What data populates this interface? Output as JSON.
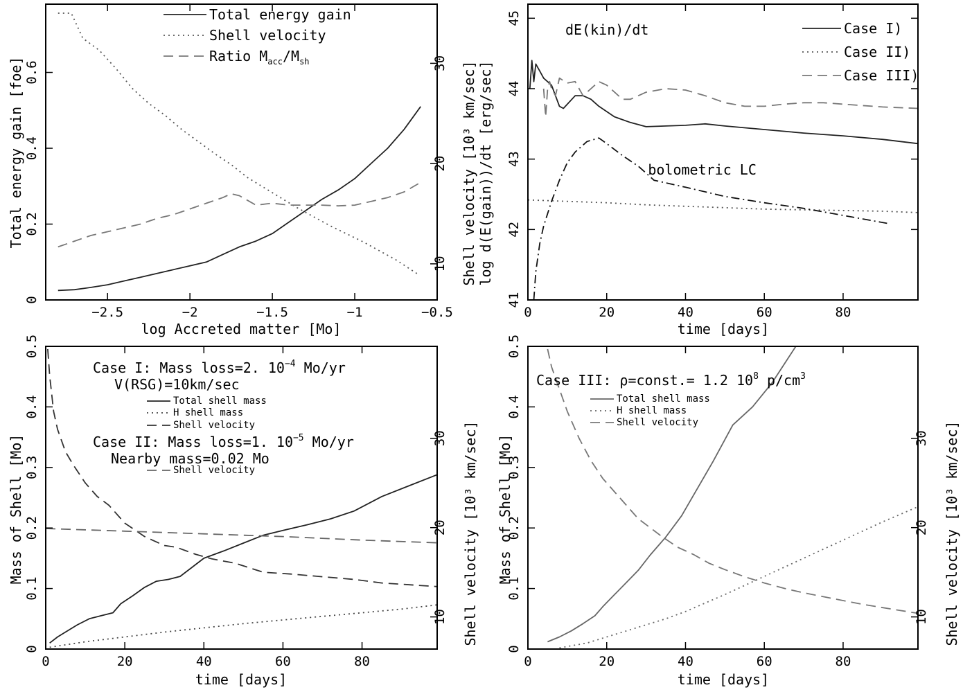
{
  "chart_data": [
    {
      "type": "line",
      "panel": "top-left",
      "title": "",
      "xlabel": "log  Accreted matter [Mo]",
      "ylabel": "Total energy gain [foe]",
      "ylabel_right": "Shell velocity [10³ km/sec]",
      "xlim": [
        -2.875,
        -0.5
      ],
      "ylim": [
        0,
        0.78
      ],
      "ylim_right": [
        6.4,
        35.9
      ],
      "xticks": [
        -2.5,
        -2,
        -1.5,
        -1,
        -0.5
      ],
      "xtick_labels": [
        "−2.5",
        "−2",
        "−1.5",
        "−1",
        "−0.5"
      ],
      "yticks": [
        0,
        0.2,
        0.4,
        0.6
      ],
      "ytick_labels": [
        "0",
        "0.2",
        "0.4",
        "0.6"
      ],
      "yticks_right": [
        10,
        20,
        30
      ],
      "ytick_labels_right": [
        "10",
        "20",
        "30"
      ],
      "legend_position": "top-center",
      "series": [
        {
          "name": "Total energy gain",
          "style": "solid",
          "color": "#222222",
          "axis": "left",
          "x": [
            -2.8,
            -2.7,
            -2.6,
            -2.5,
            -2.4,
            -2.3,
            -2.2,
            -2.1,
            -2.0,
            -1.9,
            -1.8,
            -1.7,
            -1.6,
            -1.5,
            -1.4,
            -1.3,
            -1.2,
            -1.1,
            -1.0,
            -0.9,
            -0.8,
            -0.7,
            -0.6
          ],
          "y": [
            0.025,
            0.027,
            0.033,
            0.04,
            0.05,
            0.06,
            0.07,
            0.08,
            0.09,
            0.1,
            0.12,
            0.14,
            0.155,
            0.175,
            0.205,
            0.235,
            0.265,
            0.29,
            0.32,
            0.36,
            0.4,
            0.45,
            0.51
          ]
        },
        {
          "name": "Shell velocity",
          "style": "dotted",
          "color": "#555555",
          "axis": "right",
          "x": [
            -2.8,
            -2.72,
            -2.65,
            -2.55,
            -2.45,
            -2.35,
            -2.25,
            -2.15,
            -2.05,
            -1.95,
            -1.85,
            -1.75,
            -1.65,
            -1.55,
            -1.45,
            -1.35,
            -1.25,
            -1.15,
            -1.05,
            -0.95,
            -0.85,
            -0.75,
            -0.62
          ],
          "y": [
            35.0,
            35.0,
            32.5,
            31.3,
            29.5,
            27.5,
            26.0,
            24.8,
            23.4,
            22.2,
            21.0,
            19.9,
            18.6,
            17.6,
            16.6,
            15.6,
            14.7,
            13.8,
            13.0,
            12.2,
            11.3,
            10.4,
            9.0
          ]
        },
        {
          "name": "Ratio M_acc/M_sh",
          "style": "dashed",
          "color": "#777777",
          "axis": "left",
          "x": [
            -2.8,
            -2.7,
            -2.6,
            -2.5,
            -2.4,
            -2.3,
            -2.2,
            -2.1,
            -2.0,
            -1.9,
            -1.8,
            -1.75,
            -1.7,
            -1.6,
            -1.5,
            -1.4,
            -1.3,
            -1.2,
            -1.1,
            -1.0,
            -0.9,
            -0.8,
            -0.7,
            -0.6
          ],
          "y": [
            0.14,
            0.155,
            0.17,
            0.18,
            0.19,
            0.2,
            0.215,
            0.225,
            0.24,
            0.255,
            0.27,
            0.28,
            0.275,
            0.25,
            0.255,
            0.25,
            0.25,
            0.25,
            0.248,
            0.25,
            0.26,
            0.27,
            0.285,
            0.31
          ]
        }
      ]
    },
    {
      "type": "line",
      "panel": "top-right",
      "title": "dE(kin)/dt",
      "xlabel": "time [days]",
      "ylabel": "log d(E(gain))/dt [erg/sec]",
      "xlim": [
        0,
        99
      ],
      "ylim": [
        41,
        45.2
      ],
      "xticks": [
        0,
        20,
        40,
        60,
        80
      ],
      "xtick_labels": [
        "0",
        "20",
        "40",
        "60",
        "80"
      ],
      "yticks": [
        41,
        42,
        43,
        44,
        45
      ],
      "ytick_labels": [
        "41",
        "42",
        "43",
        "44",
        "45"
      ],
      "legend_position": "top-right",
      "annotations": [
        {
          "text": "bolometric LC",
          "x": 34,
          "y": 42.7
        }
      ],
      "series": [
        {
          "name": "Case I)",
          "style": "solid",
          "color": "#222222",
          "x": [
            0.5,
            1,
            1.5,
            2,
            3,
            4,
            6,
            8,
            9,
            10,
            12,
            14,
            16,
            18,
            22,
            26,
            30,
            35,
            40,
            45,
            50,
            60,
            70,
            80,
            90,
            99
          ],
          "y": [
            44.0,
            44.4,
            44.1,
            44.35,
            44.25,
            44.15,
            44.05,
            43.75,
            43.72,
            43.78,
            43.9,
            43.9,
            43.85,
            43.75,
            43.6,
            43.52,
            43.46,
            43.47,
            43.48,
            43.5,
            43.47,
            43.42,
            43.37,
            43.33,
            43.28,
            43.22
          ]
        },
        {
          "name": "Case II)",
          "style": "dotted",
          "color": "#555555",
          "x": [
            0,
            10,
            20,
            30,
            40,
            50,
            60,
            70,
            80,
            90,
            99
          ],
          "y": [
            42.42,
            42.4,
            42.38,
            42.35,
            42.33,
            42.31,
            42.29,
            42.28,
            42.27,
            42.26,
            42.24
          ]
        },
        {
          "name": "Case III)",
          "style": "dashed",
          "color": "#777777",
          "x": [
            4,
            4.5,
            5,
            5.5,
            6,
            7,
            8,
            10,
            12,
            14,
            16,
            18,
            20,
            24,
            26,
            30,
            35,
            40,
            45,
            50,
            55,
            60,
            65,
            70,
            75,
            80,
            90,
            99
          ],
          "y": [
            44.0,
            43.6,
            44.0,
            44.1,
            44.0,
            43.9,
            44.15,
            44.08,
            44.1,
            43.9,
            44.0,
            44.1,
            44.05,
            43.85,
            43.85,
            43.95,
            44.0,
            43.98,
            43.9,
            43.8,
            43.75,
            43.75,
            43.78,
            43.8,
            43.8,
            43.78,
            43.74,
            43.72
          ]
        },
        {
          "name": "bolometric LC",
          "style": "dashdot",
          "color": "#111111",
          "x": [
            1.5,
            2,
            3,
            4,
            6,
            8,
            10,
            12,
            15,
            18,
            20,
            24,
            28,
            32,
            40,
            50,
            60,
            70,
            80,
            92
          ],
          "y": [
            41.0,
            41.4,
            41.8,
            42.05,
            42.4,
            42.7,
            42.95,
            43.1,
            43.25,
            43.3,
            43.22,
            43.05,
            42.9,
            42.7,
            42.6,
            42.47,
            42.38,
            42.3,
            42.2,
            42.08
          ]
        }
      ]
    },
    {
      "type": "line",
      "panel": "bottom-left",
      "title": "",
      "xlabel": "time [days]",
      "ylabel": "Mass of Shell [Mo]",
      "ylabel_right": "Shell velocity [10³ km/sec]",
      "xlim": [
        0,
        99
      ],
      "ylim": [
        0,
        0.5
      ],
      "ylim_right": [
        6.4,
        40.3
      ],
      "xticks": [
        0,
        20,
        40,
        60,
        80
      ],
      "xtick_labels": [
        "0",
        "20",
        "40",
        "60",
        "80"
      ],
      "yticks": [
        0,
        0.1,
        0.2,
        0.3,
        0.4,
        0.5
      ],
      "ytick_labels": [
        "0",
        "0.1",
        "0.2",
        "0.3",
        "0.4",
        "0.5"
      ],
      "yticks_right": [
        10,
        20,
        30
      ],
      "ytick_labels_right": [
        "10",
        "20",
        "30"
      ],
      "annotations": [
        {
          "text": "Case I: Mass loss=2. 10",
          "sup": "−4",
          "rest": " Mo/yr"
        },
        {
          "text": "V(RSG)=10km/sec"
        },
        {
          "text": "Case II: Mass loss=1. 10",
          "sup": "−5",
          "rest": " Mo/yr"
        },
        {
          "text": "Nearby mass=0.02 Mo"
        }
      ],
      "legend_position": "top-center",
      "series": [
        {
          "name": "Total shell mass",
          "legend_group": "Case I",
          "style": "solid",
          "color": "#222222",
          "axis": "left",
          "x": [
            1,
            3,
            5,
            8,
            11,
            14,
            17,
            19,
            22,
            25,
            28,
            31,
            34,
            37,
            40,
            45,
            50,
            55,
            60,
            66,
            72,
            78,
            85,
            92,
            99
          ],
          "y": [
            0.01,
            0.02,
            0.028,
            0.04,
            0.05,
            0.055,
            0.06,
            0.075,
            0.088,
            0.102,
            0.112,
            0.115,
            0.12,
            0.135,
            0.15,
            0.162,
            0.175,
            0.188,
            0.196,
            0.205,
            0.215,
            0.228,
            0.252,
            0.27,
            0.288
          ]
        },
        {
          "name": "H shell mass",
          "legend_group": "Case I",
          "style": "dotted",
          "color": "#444444",
          "axis": "left",
          "x": [
            1,
            10,
            20,
            30,
            40,
            50,
            60,
            70,
            80,
            90,
            99
          ],
          "y": [
            0.003,
            0.012,
            0.02,
            0.028,
            0.035,
            0.042,
            0.048,
            0.054,
            0.06,
            0.066,
            0.073
          ]
        },
        {
          "name": "Shell velocity",
          "legend_group": "Case I",
          "style": "dashed",
          "color": "#333333",
          "axis": "right",
          "x": [
            0.5,
            1,
            2,
            3,
            5,
            7,
            10,
            13,
            16,
            20,
            25,
            30,
            33,
            38,
            42,
            48,
            55,
            62,
            70,
            78,
            85,
            92,
            99
          ],
          "y": [
            40.0,
            37.0,
            33.0,
            31.0,
            28.5,
            27.0,
            25.0,
            23.5,
            22.5,
            20.5,
            19.0,
            18.0,
            17.8,
            17.0,
            16.5,
            16.0,
            15.0,
            14.8,
            14.5,
            14.2,
            13.8,
            13.6,
            13.4
          ]
        },
        {
          "name": "Shell velocity",
          "legend_group": "Case II",
          "style": "dashed",
          "color": "#666666",
          "axis": "right",
          "x": [
            0,
            20,
            40,
            60,
            80,
            99
          ],
          "y": [
            19.9,
            19.6,
            19.3,
            19.0,
            18.6,
            18.3
          ]
        }
      ]
    },
    {
      "type": "line",
      "panel": "bottom-right",
      "title": "",
      "xlabel": "time [days]",
      "ylabel": "Mass of Shell [Mo]",
      "ylabel_right": "Shell velocity [10³ km/sec]",
      "xlim": [
        0,
        99
      ],
      "ylim": [
        0,
        0.5
      ],
      "ylim_right": [
        6.4,
        40.3
      ],
      "xticks": [
        0,
        20,
        40,
        60,
        80
      ],
      "xtick_labels": [
        "0",
        "20",
        "40",
        "60",
        "80"
      ],
      "yticks": [
        0,
        0.1,
        0.2,
        0.3,
        0.4,
        0.5
      ],
      "ytick_labels": [
        "0",
        "0.1",
        "0.2",
        "0.3",
        "0.4",
        "0.5"
      ],
      "yticks_right": [
        10,
        20,
        30
      ],
      "ytick_labels_right": [
        "10",
        "20",
        "30"
      ],
      "annotations": [
        {
          "text": "Case III: ρ=const.= 1.2 10",
          "sup": "8",
          "rest": " p/cm",
          "sup2": "3"
        }
      ],
      "legend_position": "top-center",
      "series": [
        {
          "name": "Total shell mass",
          "style": "solid",
          "color": "#666666",
          "axis": "left",
          "x": [
            5,
            8,
            11,
            14,
            17,
            19,
            22,
            25,
            28,
            31,
            35,
            39,
            43,
            47,
            52,
            57,
            62,
            68
          ],
          "y": [
            0.012,
            0.02,
            0.03,
            0.042,
            0.055,
            0.07,
            0.09,
            0.11,
            0.13,
            0.155,
            0.185,
            0.22,
            0.265,
            0.31,
            0.37,
            0.4,
            0.44,
            0.5
          ]
        },
        {
          "name": "H shell mass",
          "style": "dotted",
          "color": "#666666",
          "axis": "left",
          "x": [
            8,
            15,
            20,
            25,
            30,
            35,
            40,
            50,
            60,
            70,
            80,
            90,
            99
          ],
          "y": [
            0.002,
            0.01,
            0.02,
            0.03,
            0.04,
            0.05,
            0.062,
            0.09,
            0.12,
            0.15,
            0.18,
            0.21,
            0.235
          ]
        },
        {
          "name": "Shell velocity",
          "style": "dashed",
          "color": "#777777",
          "axis": "right",
          "x": [
            5,
            6,
            8,
            10,
            13,
            16,
            19,
            22,
            25,
            28,
            31,
            34,
            38,
            42,
            46,
            50,
            55,
            60,
            65,
            70,
            78,
            85,
            92,
            99
          ],
          "y": [
            40.0,
            38.0,
            35.5,
            33.0,
            30.0,
            27.5,
            25.5,
            24.0,
            22.5,
            21.0,
            20.0,
            19.0,
            17.8,
            17.0,
            16.0,
            15.3,
            14.5,
            13.8,
            13.2,
            12.7,
            12.0,
            11.4,
            10.9,
            10.4
          ]
        }
      ]
    }
  ]
}
